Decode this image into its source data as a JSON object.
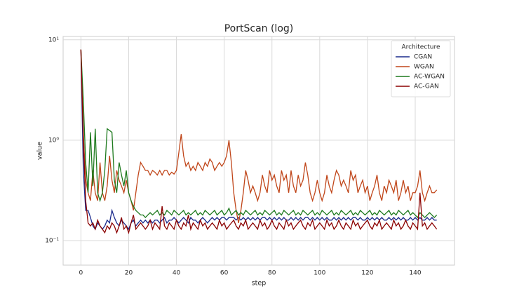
{
  "chart_data": {
    "type": "line",
    "title": "PortScan (log)",
    "x_label": "step",
    "y_label": "value",
    "log_y": true,
    "grid": true,
    "legend": "upper right",
    "legend_title": "Architecture",
    "xlim": [
      -7.45,
      156.45
    ],
    "xticks": [
      0,
      20,
      40,
      60,
      80,
      100,
      120,
      140
    ],
    "ylim": [
      0.057,
      10.8
    ],
    "yticks": [
      {
        "value": 0.1,
        "label": "10⁻¹"
      },
      {
        "value": 1,
        "label": "10⁰"
      },
      {
        "value": 10,
        "label": "10¹"
      }
    ],
    "x": [
      0,
      1,
      2,
      3,
      4,
      5,
      6,
      7,
      8,
      9,
      10,
      11,
      12,
      13,
      14,
      15,
      16,
      17,
      18,
      19,
      20,
      21,
      22,
      23,
      24,
      25,
      26,
      27,
      28,
      29,
      30,
      31,
      32,
      33,
      34,
      35,
      36,
      37,
      38,
      39,
      40,
      41,
      42,
      43,
      44,
      45,
      46,
      47,
      48,
      49,
      50,
      51,
      52,
      53,
      54,
      55,
      56,
      57,
      58,
      59,
      60,
      61,
      62,
      63,
      64,
      65,
      66,
      67,
      68,
      69,
      70,
      71,
      72,
      73,
      74,
      75,
      76,
      77,
      78,
      79,
      80,
      81,
      82,
      83,
      84,
      85,
      86,
      87,
      88,
      89,
      90,
      91,
      92,
      93,
      94,
      95,
      96,
      97,
      98,
      99,
      100,
      101,
      102,
      103,
      104,
      105,
      106,
      107,
      108,
      109,
      110,
      111,
      112,
      113,
      114,
      115,
      116,
      117,
      118,
      119,
      120,
      121,
      122,
      123,
      124,
      125,
      126,
      127,
      128,
      129,
      130,
      131,
      132,
      133,
      134,
      135,
      136,
      137,
      138,
      139,
      140,
      141,
      142,
      143,
      144,
      145,
      146,
      147,
      148,
      149
    ],
    "series": [
      {
        "name": "CGAN",
        "color": "#1a2a8c",
        "values": [
          8,
          0.5,
          0.2,
          0.2,
          0.17,
          0.14,
          0.13,
          0.15,
          0.14,
          0.13,
          0.14,
          0.16,
          0.15,
          0.2,
          0.17,
          0.15,
          0.14,
          0.16,
          0.15,
          0.14,
          0.13,
          0.15,
          0.16,
          0.14,
          0.15,
          0.16,
          0.15,
          0.16,
          0.15,
          0.16,
          0.15,
          0.16,
          0.16,
          0.15,
          0.16,
          0.17,
          0.15,
          0.16,
          0.16,
          0.17,
          0.16,
          0.15,
          0.16,
          0.17,
          0.16,
          0.15,
          0.17,
          0.16,
          0.16,
          0.15,
          0.16,
          0.17,
          0.16,
          0.15,
          0.16,
          0.17,
          0.16,
          0.17,
          0.16,
          0.17,
          0.17,
          0.16,
          0.17,
          0.17,
          0.17,
          0.16,
          0.17,
          0.16,
          0.17,
          0.16,
          0.17,
          0.16,
          0.17,
          0.16,
          0.17,
          0.16,
          0.17,
          0.17,
          0.16,
          0.17,
          0.16,
          0.17,
          0.16,
          0.17,
          0.16,
          0.17,
          0.16,
          0.16,
          0.17,
          0.16,
          0.17,
          0.16,
          0.17,
          0.16,
          0.17,
          0.17,
          0.16,
          0.17,
          0.16,
          0.17,
          0.16,
          0.17,
          0.16,
          0.17,
          0.16,
          0.16,
          0.17,
          0.16,
          0.17,
          0.16,
          0.17,
          0.16,
          0.17,
          0.16,
          0.17,
          0.17,
          0.16,
          0.17,
          0.16,
          0.16,
          0.17,
          0.16,
          0.17,
          0.16,
          0.17,
          0.16,
          0.17,
          0.16,
          0.16,
          0.17,
          0.16,
          0.17,
          0.16,
          0.17,
          0.16,
          0.17,
          0.16,
          0.16,
          0.17,
          0.16,
          0.17,
          0.16,
          0.17,
          0.16,
          0.16,
          0.17,
          0.16,
          0.17,
          0.16,
          0.16
        ]
      },
      {
        "name": "WGAN",
        "color": "#c0461a",
        "values": [
          8,
          1.2,
          0.4,
          0.3,
          0.25,
          0.5,
          0.3,
          0.25,
          0.6,
          0.3,
          0.25,
          0.35,
          0.7,
          0.4,
          0.3,
          0.5,
          0.4,
          0.35,
          0.3,
          0.4,
          0.3,
          0.25,
          0.2,
          0.3,
          0.45,
          0.6,
          0.55,
          0.5,
          0.5,
          0.45,
          0.5,
          0.48,
          0.45,
          0.5,
          0.45,
          0.5,
          0.5,
          0.45,
          0.48,
          0.46,
          0.5,
          0.75,
          1.15,
          0.7,
          0.55,
          0.6,
          0.5,
          0.55,
          0.5,
          0.6,
          0.55,
          0.5,
          0.6,
          0.55,
          0.65,
          0.6,
          0.5,
          0.55,
          0.6,
          0.55,
          0.6,
          0.7,
          1.0,
          0.6,
          0.3,
          0.2,
          0.15,
          0.2,
          0.3,
          0.5,
          0.4,
          0.3,
          0.35,
          0.3,
          0.25,
          0.3,
          0.45,
          0.35,
          0.3,
          0.5,
          0.4,
          0.45,
          0.35,
          0.3,
          0.5,
          0.4,
          0.45,
          0.3,
          0.5,
          0.35,
          0.3,
          0.45,
          0.35,
          0.4,
          0.6,
          0.45,
          0.3,
          0.25,
          0.3,
          0.4,
          0.3,
          0.25,
          0.3,
          0.45,
          0.35,
          0.3,
          0.4,
          0.5,
          0.45,
          0.35,
          0.4,
          0.35,
          0.3,
          0.5,
          0.4,
          0.45,
          0.3,
          0.35,
          0.4,
          0.3,
          0.35,
          0.25,
          0.3,
          0.35,
          0.45,
          0.3,
          0.25,
          0.35,
          0.3,
          0.4,
          0.35,
          0.3,
          0.4,
          0.25,
          0.3,
          0.4,
          0.3,
          0.35,
          0.25,
          0.3,
          0.3,
          0.35,
          0.5,
          0.3,
          0.25,
          0.3,
          0.35,
          0.3,
          0.3,
          0.32
        ]
      },
      {
        "name": "AC-WGAN",
        "color": "#1e7a1e",
        "values": [
          8,
          2.5,
          0.6,
          0.3,
          1.2,
          0.35,
          1.3,
          0.3,
          0.25,
          0.3,
          0.5,
          1.3,
          1.25,
          1.2,
          0.4,
          0.3,
          0.6,
          0.45,
          0.35,
          0.5,
          0.3,
          0.25,
          0.22,
          0.2,
          0.19,
          0.18,
          0.18,
          0.17,
          0.18,
          0.19,
          0.18,
          0.19,
          0.2,
          0.18,
          0.19,
          0.18,
          0.2,
          0.19,
          0.18,
          0.2,
          0.19,
          0.18,
          0.19,
          0.2,
          0.18,
          0.19,
          0.18,
          0.19,
          0.2,
          0.18,
          0.19,
          0.18,
          0.2,
          0.19,
          0.18,
          0.19,
          0.2,
          0.18,
          0.19,
          0.2,
          0.18,
          0.19,
          0.21,
          0.18,
          0.19,
          0.2,
          0.18,
          0.19,
          0.18,
          0.2,
          0.19,
          0.18,
          0.19,
          0.2,
          0.18,
          0.19,
          0.18,
          0.2,
          0.19,
          0.18,
          0.19,
          0.2,
          0.18,
          0.19,
          0.18,
          0.2,
          0.19,
          0.18,
          0.19,
          0.2,
          0.18,
          0.19,
          0.18,
          0.2,
          0.19,
          0.18,
          0.19,
          0.2,
          0.18,
          0.19,
          0.18,
          0.2,
          0.19,
          0.18,
          0.19,
          0.2,
          0.18,
          0.19,
          0.18,
          0.2,
          0.19,
          0.18,
          0.19,
          0.2,
          0.18,
          0.19,
          0.18,
          0.2,
          0.19,
          0.18,
          0.19,
          0.2,
          0.18,
          0.19,
          0.18,
          0.2,
          0.19,
          0.18,
          0.19,
          0.2,
          0.18,
          0.19,
          0.18,
          0.2,
          0.19,
          0.18,
          0.19,
          0.2,
          0.18,
          0.19,
          0.18,
          0.17,
          0.19,
          0.18,
          0.17,
          0.18,
          0.19,
          0.18,
          0.17,
          0.18
        ]
      },
      {
        "name": "AC-GAN",
        "color": "#8b0000",
        "values": [
          8,
          1.0,
          0.25,
          0.15,
          0.14,
          0.15,
          0.13,
          0.16,
          0.14,
          0.13,
          0.12,
          0.14,
          0.13,
          0.15,
          0.14,
          0.12,
          0.14,
          0.17,
          0.13,
          0.14,
          0.12,
          0.15,
          0.18,
          0.13,
          0.14,
          0.15,
          0.14,
          0.13,
          0.14,
          0.16,
          0.13,
          0.15,
          0.14,
          0.13,
          0.22,
          0.14,
          0.13,
          0.15,
          0.14,
          0.13,
          0.16,
          0.14,
          0.13,
          0.15,
          0.14,
          0.18,
          0.13,
          0.15,
          0.14,
          0.13,
          0.16,
          0.14,
          0.15,
          0.13,
          0.14,
          0.15,
          0.14,
          0.13,
          0.16,
          0.14,
          0.15,
          0.13,
          0.14,
          0.15,
          0.16,
          0.14,
          0.13,
          0.15,
          0.14,
          0.16,
          0.13,
          0.14,
          0.15,
          0.14,
          0.13,
          0.16,
          0.14,
          0.15,
          0.13,
          0.14,
          0.16,
          0.14,
          0.13,
          0.15,
          0.14,
          0.13,
          0.16,
          0.14,
          0.15,
          0.13,
          0.14,
          0.15,
          0.16,
          0.14,
          0.13,
          0.15,
          0.14,
          0.16,
          0.13,
          0.14,
          0.15,
          0.14,
          0.13,
          0.16,
          0.14,
          0.15,
          0.13,
          0.14,
          0.16,
          0.14,
          0.13,
          0.15,
          0.14,
          0.13,
          0.16,
          0.14,
          0.15,
          0.13,
          0.14,
          0.15,
          0.16,
          0.14,
          0.13,
          0.15,
          0.14,
          0.16,
          0.13,
          0.14,
          0.15,
          0.14,
          0.13,
          0.16,
          0.14,
          0.15,
          0.13,
          0.14,
          0.16,
          0.14,
          0.13,
          0.15,
          0.14,
          0.13,
          0.3,
          0.14,
          0.15,
          0.13,
          0.14,
          0.15,
          0.14,
          0.13
        ]
      }
    ]
  }
}
